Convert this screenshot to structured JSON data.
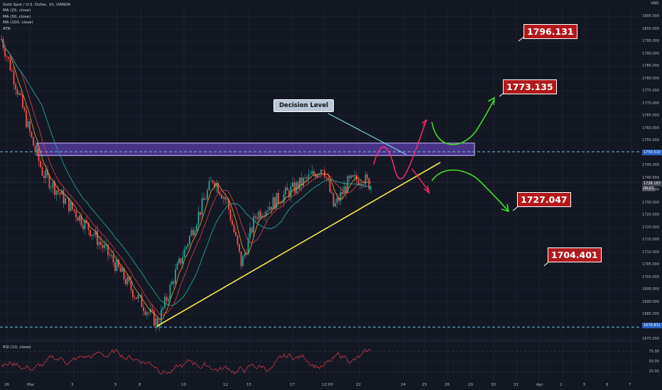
{
  "chart_data": {
    "type": "candlestick",
    "symbol_header": "Gold Spot / U.S. Dollar, 1h, OANDA",
    "indicators": [
      "MA (25, close)",
      "MA (50, close)",
      "MA (100, close)",
      "ATR"
    ],
    "rsi_label": "RSI (10, close)",
    "currency": "USD",
    "ylim": [
      1675,
      1810
    ],
    "y_ticks": [
      1805,
      1800,
      1795,
      1790,
      1785,
      1780,
      1775,
      1770,
      1765,
      1760,
      1755,
      1745,
      1740,
      1735,
      1730,
      1725,
      1720,
      1715,
      1710,
      1705,
      1700,
      1695,
      1690,
      1685,
      1675
    ],
    "y_tick_labels": [
      "1805.000",
      "1800.000",
      "1795.000",
      "1790.000",
      "1785.000",
      "1780.000",
      "1775.000",
      "1770.000",
      "1765.000",
      "1760.000",
      "1755.000",
      "1745.000",
      "1740.000",
      "1735.000",
      "1730.000",
      "1725.000",
      "1720.000",
      "1715.000",
      "1710.000",
      "1705.000",
      "1700.000",
      "1695.000",
      "1690.000",
      "1685.000",
      "1675.000"
    ],
    "x_tick_labels": [
      "26",
      "Mar",
      "3",
      "5",
      "8",
      "10",
      "12",
      "15",
      "17",
      "12:00",
      "22",
      "24",
      "25",
      "26",
      "29",
      "30",
      "31",
      "Apr",
      "2",
      "5",
      "6",
      "7"
    ],
    "rsi_ticks": [
      "75.00",
      "50.00",
      "25.00"
    ],
    "current_price": "1738.163",
    "current_price_sub": "06:01",
    "resistance_level": "1750.510",
    "support_level": "1679.831",
    "resistance_zone": [
      1749,
      1754
    ],
    "annotations": {
      "decision_level": "Decision Level",
      "targets": [
        "1796.131",
        "1773.135",
        "1727.047",
        "1704.401"
      ]
    },
    "colors": {
      "up": "#26a69a",
      "down": "#ef5350",
      "zone": "#5b3fa8",
      "trendline": "#f5e946",
      "up_path": "#3ddc29",
      "down_path": "#ff2f6a",
      "target_box": "#b2191a"
    }
  }
}
